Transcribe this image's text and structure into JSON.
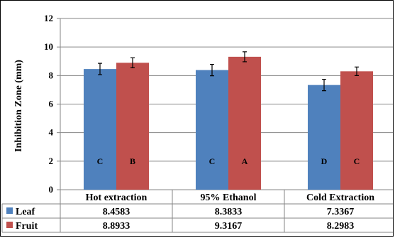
{
  "chart_data": {
    "type": "bar",
    "title": "",
    "xlabel": "",
    "ylabel": "Inhibition Zone (mm)",
    "ylim": [
      0,
      12
    ],
    "y_ticks": [
      "0",
      "2",
      "4",
      "6",
      "8",
      "10",
      "12"
    ],
    "grid": "horizontal",
    "legend": "data-table",
    "categories": [
      "Hot extraction",
      "95% Ethanol",
      "Cold Extraction"
    ],
    "series": [
      {
        "name": "Leaf",
        "color": "#4f81bd",
        "values": [
          8.4583,
          8.3833,
          7.3367
        ],
        "value_labels": [
          "8.4583",
          "8.3833",
          "7.3367"
        ],
        "errors": [
          0.4,
          0.4,
          0.4
        ],
        "letters": [
          "C",
          "C",
          "D"
        ]
      },
      {
        "name": "Fruit",
        "color": "#c0504d",
        "values": [
          8.8933,
          9.3167,
          8.2983
        ],
        "value_labels": [
          "8.8933",
          "9.3167",
          "8.2983"
        ],
        "errors": [
          0.35,
          0.35,
          0.3
        ],
        "letters": [
          "B",
          "A",
          "C"
        ]
      }
    ]
  }
}
